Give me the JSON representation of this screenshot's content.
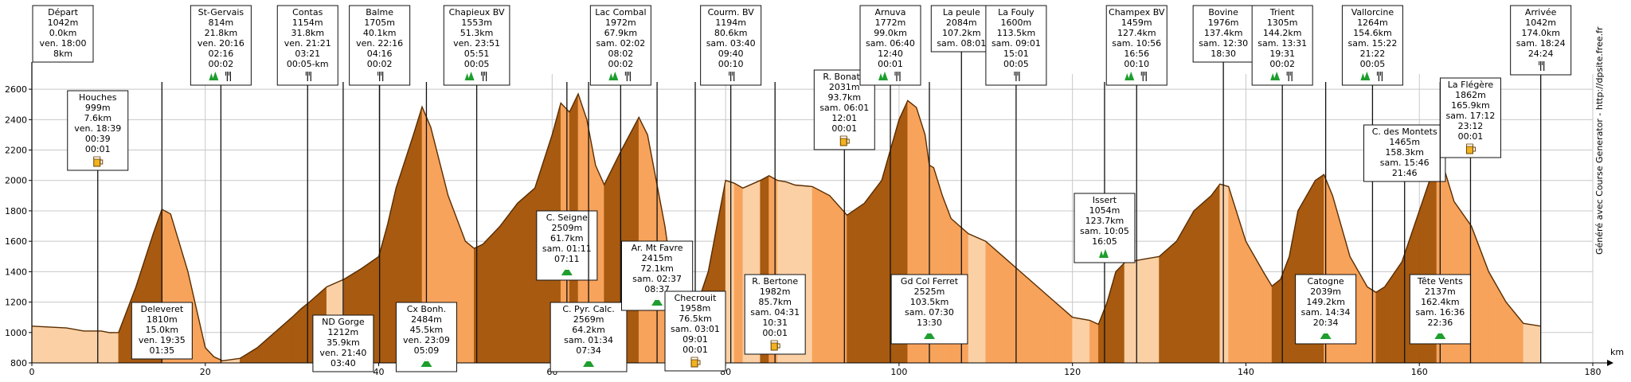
{
  "chart_data": {
    "type": "area",
    "title": "",
    "xlabel": "km",
    "ylabel": "",
    "xlim": [
      0,
      180
    ],
    "ylim": [
      800,
      2700
    ],
    "x_ticks": [
      0,
      20,
      40,
      60,
      80,
      100,
      120,
      140,
      160,
      180
    ],
    "y_ticks": [
      800,
      1000,
      1200,
      1400,
      1600,
      1800,
      2000,
      2200,
      2400,
      2600
    ],
    "grid": true,
    "credit": "Généré avec Course Generator - http://dpsite.free.fr",
    "colors": {
      "climb": "#a75a10",
      "descent": "#f7a35b",
      "flat": "#fbd0a5",
      "outline": "#5a2d00"
    },
    "series": [
      {
        "x": [
          0,
          4,
          6,
          8,
          9,
          10,
          12,
          14,
          15,
          16,
          18,
          20,
          21,
          22,
          24,
          26,
          28,
          30,
          31,
          32,
          34,
          36,
          38,
          40,
          41,
          42,
          44,
          45,
          46,
          48,
          50,
          51,
          52,
          54,
          56,
          58,
          60,
          61,
          62,
          63,
          64,
          65,
          66,
          68,
          70,
          71,
          72,
          73,
          74,
          75,
          76,
          77,
          78,
          80,
          81,
          82,
          84,
          85,
          86,
          87,
          88,
          90,
          92,
          94,
          96,
          98,
          99,
          100,
          101,
          102,
          103,
          103.5,
          104,
          105,
          106,
          107,
          108,
          110,
          112,
          114,
          116,
          118,
          120,
          122,
          123,
          124,
          125,
          126,
          128,
          130,
          132,
          134,
          136,
          137,
          138,
          140,
          142,
          143,
          144,
          145,
          146,
          148,
          149,
          150,
          152,
          154,
          155,
          156,
          158,
          160,
          162,
          163,
          164,
          166,
          168,
          170,
          172,
          174
        ],
        "y": [
          1042,
          1030,
          1010,
          1010,
          999,
          1000,
          1300,
          1650,
          1810,
          1780,
          1400,
          900,
          840,
          814,
          830,
          900,
          1000,
          1100,
          1154,
          1200,
          1300,
          1350,
          1420,
          1500,
          1705,
          1950,
          2300,
          2484,
          2350,
          1900,
          1600,
          1553,
          1580,
          1700,
          1850,
          1950,
          2300,
          2509,
          2450,
          2569,
          2400,
          2100,
          1972,
          2200,
          2415,
          2300,
          2000,
          1700,
          1300,
          1250,
          1194,
          1230,
          1400,
          2000,
          1982,
          1950,
          2000,
          2031,
          2000,
          1990,
          1970,
          1960,
          1900,
          1772,
          1850,
          2000,
          2200,
          2400,
          2525,
          2480,
          2300,
          2100,
          2084,
          1900,
          1750,
          1700,
          1650,
          1600,
          1500,
          1400,
          1300,
          1200,
          1100,
          1080,
          1054,
          1200,
          1400,
          1459,
          1480,
          1500,
          1600,
          1800,
          1900,
          1976,
          1960,
          1600,
          1400,
          1305,
          1350,
          1500,
          1800,
          2000,
          2039,
          1900,
          1500,
          1300,
          1264,
          1300,
          1465,
          1800,
          2137,
          2050,
          1862,
          1700,
          1400,
          1200,
          1060,
          1042
        ]
      }
    ],
    "annotations": [
      {
        "id": "depart",
        "km": 0,
        "side": "top",
        "lines": [
          "Départ",
          "1042m",
          "0.0km",
          "ven. 18:00",
          "8km"
        ],
        "icons": []
      },
      {
        "id": "houches",
        "km": 7.6,
        "side": "top",
        "lines": [
          "Houches",
          "999m",
          "7.6km",
          "ven. 18:39",
          "00:39",
          "00:01"
        ],
        "icons": [
          "beer-icon"
        ]
      },
      {
        "id": "st-gervais",
        "km": 21.8,
        "side": "top",
        "lines": [
          "St-Gervais",
          "814m",
          "21.8km",
          "ven. 20:16",
          "02:16",
          "00:02"
        ],
        "icons": [
          "aid-icon",
          "meal-icon"
        ]
      },
      {
        "id": "contas",
        "km": 31.8,
        "side": "top",
        "lines": [
          "Contas",
          "1154m",
          "31.8km",
          "ven. 21:21",
          "03:21",
          "00:05-km"
        ],
        "icons": [
          "meal-icon"
        ]
      },
      {
        "id": "balme",
        "km": 40.1,
        "side": "top",
        "lines": [
          "Balme",
          "1705m",
          "40.1km",
          "ven. 22:16",
          "04:16",
          "00:02"
        ],
        "icons": [
          "meal-icon"
        ]
      },
      {
        "id": "chapieux",
        "km": 51.3,
        "side": "top",
        "lines": [
          "Chapieux BV",
          "1553m",
          "51.3km",
          "ven. 23:51",
          "05:51",
          "00:05"
        ],
        "icons": [
          "aid-icon",
          "meal-icon"
        ]
      },
      {
        "id": "lac-combal",
        "km": 67.9,
        "side": "top",
        "lines": [
          "Lac Combal",
          "1972m",
          "67.9km",
          "sam. 02:02",
          "08:02",
          "00:02"
        ],
        "icons": [
          "aid-icon",
          "meal-icon"
        ]
      },
      {
        "id": "courm",
        "km": 80.6,
        "side": "top",
        "lines": [
          "Courm. BV",
          "1194m",
          "80.6km",
          "sam. 03:40",
          "09:40",
          "00:10"
        ],
        "icons": [
          "meal-icon"
        ]
      },
      {
        "id": "bonatti",
        "km": 93.7,
        "side": "top",
        "lines": [
          "R. Bonatti",
          "2031m",
          "93.7km",
          "sam. 06:01",
          "12:01",
          "00:01"
        ],
        "icons": [
          "beer-icon"
        ]
      },
      {
        "id": "arnuva",
        "km": 99.0,
        "side": "top",
        "lines": [
          "Arnuva",
          "1772m",
          "99.0km",
          "sam. 06:40",
          "12:40",
          "00:01"
        ],
        "icons": [
          "aid-icon",
          "meal-icon"
        ]
      },
      {
        "id": "la-peule",
        "km": 107.2,
        "side": "top",
        "lines": [
          "La peule",
          "2084m",
          "107.2km",
          "sam. 08:01"
        ],
        "icons": []
      },
      {
        "id": "la-fouly",
        "km": 113.5,
        "side": "top",
        "lines": [
          "La Fouly",
          "1600m",
          "113.5km",
          "sam. 09:01",
          "15:01",
          "00:05"
        ],
        "icons": [
          "meal-icon"
        ]
      },
      {
        "id": "champex",
        "km": 127.4,
        "side": "top",
        "lines": [
          "Champex BV",
          "1459m",
          "127.4km",
          "sam. 10:56",
          "16:56",
          "00:10"
        ],
        "icons": [
          "aid-icon",
          "meal-icon"
        ]
      },
      {
        "id": "bovine",
        "km": 137.4,
        "side": "top",
        "lines": [
          "Bovine",
          "1976m",
          "137.4km",
          "sam. 12:30",
          "18:30"
        ],
        "icons": []
      },
      {
        "id": "trient",
        "km": 144.2,
        "side": "top",
        "lines": [
          "Trient",
          "1305m",
          "144.2km",
          "sam. 13:31",
          "19:31",
          "00:02"
        ],
        "icons": [
          "aid-icon",
          "meal-icon"
        ]
      },
      {
        "id": "vallorcine",
        "km": 154.6,
        "side": "top",
        "lines": [
          "Vallorcine",
          "1264m",
          "154.6km",
          "sam. 15:22",
          "21:22",
          "00:05"
        ],
        "icons": [
          "aid-icon",
          "meal-icon"
        ]
      },
      {
        "id": "montets",
        "km": 158.3,
        "side": "top",
        "lines": [
          "C. des Montets",
          "1465m",
          "158.3km",
          "sam. 15:46",
          "21:46"
        ],
        "icons": []
      },
      {
        "id": "flegere",
        "km": 165.9,
        "side": "top",
        "lines": [
          "La Flégère",
          "1862m",
          "165.9km",
          "sam. 17:12",
          "23:12",
          "00:01"
        ],
        "icons": [
          "beer-icon"
        ]
      },
      {
        "id": "arrivee",
        "km": 174.0,
        "side": "top",
        "lines": [
          "Arrivée",
          "1042m",
          "174.0km",
          "sam. 18:24",
          "24:24"
        ],
        "icons": [
          "meal-icon"
        ]
      },
      {
        "id": "delevret",
        "km": 15.0,
        "side": "bottom",
        "lines": [
          "Deleveret",
          "1810m",
          "15.0km",
          "ven. 19:35",
          "01:35"
        ],
        "icons": []
      },
      {
        "id": "nd-gorge",
        "km": 35.9,
        "side": "bottom",
        "lines": [
          "ND Gorge",
          "1212m",
          "35.9km",
          "ven. 21:40",
          "03:40"
        ],
        "icons": []
      },
      {
        "id": "cx-bonh",
        "km": 45.5,
        "side": "bottom",
        "lines": [
          "Cx Bonh.",
          "2484m",
          "45.5km",
          "ven. 23:09",
          "05:09"
        ],
        "icons": [
          "summit-icon"
        ]
      },
      {
        "id": "c-seigne",
        "km": 61.7,
        "side": "bottom",
        "lines": [
          "C. Seigne",
          "2509m",
          "61.7km",
          "sam. 01:11",
          "07:11"
        ],
        "icons": [
          "summit-icon"
        ]
      },
      {
        "id": "c-pyr",
        "km": 64.2,
        "side": "bottom",
        "lines": [
          "C. Pyr. Calc.",
          "2569m",
          "64.2km",
          "sam. 01:34",
          "07:34"
        ],
        "icons": [
          "summit-icon"
        ]
      },
      {
        "id": "mt-favre",
        "km": 72.1,
        "side": "bottom",
        "lines": [
          "Ar. Mt Favre",
          "2415m",
          "72.1km",
          "sam. 02:37",
          "08:37"
        ],
        "icons": [
          "summit-icon"
        ]
      },
      {
        "id": "checrouit",
        "km": 76.5,
        "side": "bottom",
        "lines": [
          "Checrouit",
          "1958m",
          "76.5km",
          "sam. 03:01",
          "09:01",
          "00:01"
        ],
        "icons": [
          "beer-icon"
        ]
      },
      {
        "id": "bertone",
        "km": 85.7,
        "side": "bottom",
        "lines": [
          "R. Bertone",
          "1982m",
          "85.7km",
          "sam. 04:31",
          "10:31",
          "00:01"
        ],
        "icons": [
          "beer-icon"
        ]
      },
      {
        "id": "ferret",
        "km": 103.5,
        "side": "bottom",
        "lines": [
          "Gd Col Ferret",
          "2525m",
          "103.5km",
          "sam. 07:30",
          "13:30"
        ],
        "icons": [
          "summit-icon"
        ]
      },
      {
        "id": "issert",
        "km": 123.7,
        "side": "bottom",
        "lines": [
          "Issert",
          "1054m",
          "123.7km",
          "sam. 10:05",
          "16:05"
        ],
        "icons": [
          "aid-icon"
        ]
      },
      {
        "id": "catogne",
        "km": 149.2,
        "side": "bottom",
        "lines": [
          "Catogne",
          "2039m",
          "149.2km",
          "sam. 14:34",
          "20:34"
        ],
        "icons": [
          "summit-icon"
        ]
      },
      {
        "id": "tete-vents",
        "km": 162.4,
        "side": "bottom",
        "lines": [
          "Tête Vents",
          "2137m",
          "162.4km",
          "sam. 16:36",
          "22:36"
        ],
        "icons": [
          "summit-icon"
        ]
      }
    ]
  }
}
